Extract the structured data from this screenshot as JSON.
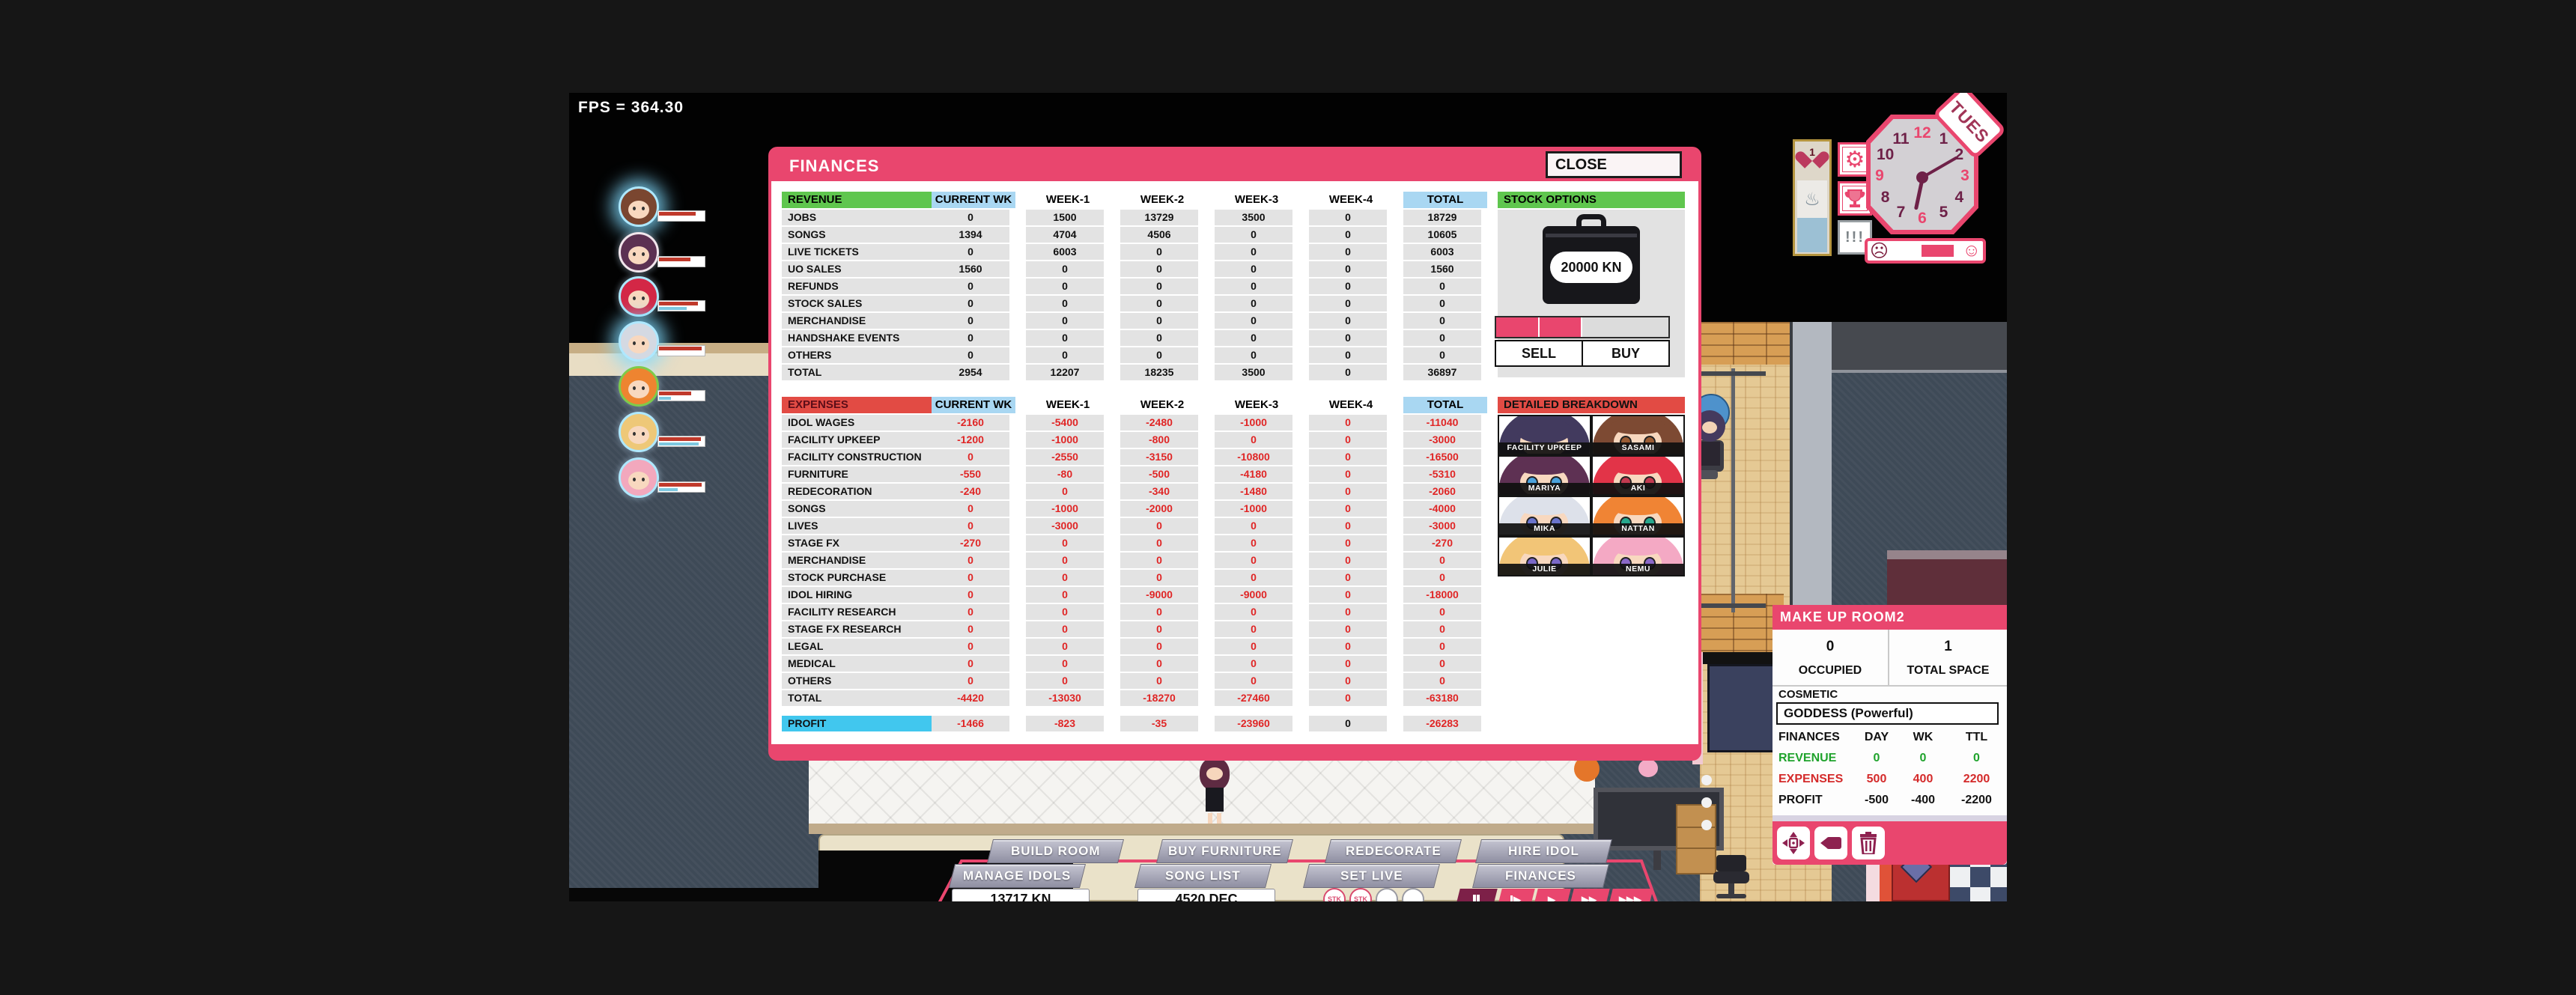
{
  "fps_label": "FPS = 364.30",
  "colors": {
    "accent_pink": "#e9466e",
    "header_green": "#5fc64e",
    "header_blue": "#a9d7f2",
    "header_red": "#e24b44",
    "profit_cyan": "#41c7ee",
    "negative_red": "#e02525"
  },
  "finances": {
    "title": "FINANCES",
    "close_label": "CLOSE",
    "columns": [
      "CURRENT WK",
      "WEEK-1",
      "WEEK-2",
      "WEEK-3",
      "WEEK-4",
      "TOTAL"
    ],
    "revenue_header": "REVENUE",
    "revenue_rows": [
      {
        "label": "JOBS",
        "values": [
          "0",
          "1500",
          "13729",
          "3500",
          "0",
          "18729"
        ]
      },
      {
        "label": "SONGS",
        "values": [
          "1394",
          "4704",
          "4506",
          "0",
          "0",
          "10605"
        ]
      },
      {
        "label": "LIVE TICKETS",
        "values": [
          "0",
          "6003",
          "0",
          "0",
          "0",
          "6003"
        ]
      },
      {
        "label": "UO SALES",
        "values": [
          "1560",
          "0",
          "0",
          "0",
          "0",
          "1560"
        ]
      },
      {
        "label": "REFUNDS",
        "values": [
          "0",
          "0",
          "0",
          "0",
          "0",
          "0"
        ]
      },
      {
        "label": "STOCK SALES",
        "values": [
          "0",
          "0",
          "0",
          "0",
          "0",
          "0"
        ]
      },
      {
        "label": "MERCHANDISE",
        "values": [
          "0",
          "0",
          "0",
          "0",
          "0",
          "0"
        ]
      },
      {
        "label": "HANDSHAKE EVENTS",
        "values": [
          "0",
          "0",
          "0",
          "0",
          "0",
          "0"
        ]
      },
      {
        "label": "OTHERS",
        "values": [
          "0",
          "0",
          "0",
          "0",
          "0",
          "0"
        ]
      },
      {
        "label": "TOTAL",
        "values": [
          "2954",
          "12207",
          "18235",
          "3500",
          "0",
          "36897"
        ]
      }
    ],
    "expenses_header": "EXPENSES",
    "expenses_rows": [
      {
        "label": "IDOL WAGES",
        "values": [
          "-2160",
          "-5400",
          "-2480",
          "-1000",
          "0",
          "-11040"
        ]
      },
      {
        "label": "FACILITY UPKEEP",
        "values": [
          "-1200",
          "-1000",
          "-800",
          "0",
          "0",
          "-3000"
        ]
      },
      {
        "label": "FACILITY CONSTRUCTION",
        "values": [
          "0",
          "-2550",
          "-3150",
          "-10800",
          "0",
          "-16500"
        ]
      },
      {
        "label": "FURNITURE",
        "values": [
          "-550",
          "-80",
          "-500",
          "-4180",
          "0",
          "-5310"
        ]
      },
      {
        "label": "REDECORATION",
        "values": [
          "-240",
          "0",
          "-340",
          "-1480",
          "0",
          "-2060"
        ]
      },
      {
        "label": "SONGS",
        "values": [
          "0",
          "-1000",
          "-2000",
          "-1000",
          "0",
          "-4000"
        ]
      },
      {
        "label": "LIVES",
        "values": [
          "0",
          "-3000",
          "0",
          "0",
          "0",
          "-3000"
        ]
      },
      {
        "label": "STAGE FX",
        "values": [
          "-270",
          "0",
          "0",
          "0",
          "0",
          "-270"
        ]
      },
      {
        "label": "MERCHANDISE",
        "values": [
          "0",
          "0",
          "0",
          "0",
          "0",
          "0"
        ]
      },
      {
        "label": "STOCK PURCHASE",
        "values": [
          "0",
          "0",
          "0",
          "0",
          "0",
          "0"
        ]
      },
      {
        "label": "IDOL HIRING",
        "values": [
          "0",
          "0",
          "-9000",
          "-9000",
          "0",
          "-18000"
        ]
      },
      {
        "label": "FACILITY RESEARCH",
        "values": [
          "0",
          "0",
          "0",
          "0",
          "0",
          "0"
        ]
      },
      {
        "label": "STAGE FX RESEARCH",
        "values": [
          "0",
          "0",
          "0",
          "0",
          "0",
          "0"
        ]
      },
      {
        "label": "LEGAL",
        "values": [
          "0",
          "0",
          "0",
          "0",
          "0",
          "0"
        ]
      },
      {
        "label": "MEDICAL",
        "values": [
          "0",
          "0",
          "0",
          "0",
          "0",
          "0"
        ]
      },
      {
        "label": "OTHERS",
        "values": [
          "0",
          "0",
          "0",
          "0",
          "0",
          "0"
        ]
      },
      {
        "label": "TOTAL",
        "values": [
          "-4420",
          "-13030",
          "-18270",
          "-27460",
          "0",
          "-63180"
        ]
      }
    ],
    "profit_label": "PROFIT",
    "profit_values": [
      "-1466",
      "-823",
      "-35",
      "-23960",
      "0",
      "-26283"
    ],
    "stock": {
      "header": "STOCK OPTIONS",
      "briefcase_amount": "20000 KN",
      "sell_label": "SELL",
      "buy_label": "BUY",
      "segments_filled": 2,
      "segments_total": 4
    },
    "breakdown": {
      "header": "DETAILED BREAKDOWN",
      "portraits": [
        {
          "name": "FACILITY UPKEEP",
          "hair": "#423a5e",
          "eye": "#44405a",
          "covered": true
        },
        {
          "name": "SASAMI",
          "hair": "#7d4a33",
          "eye": "#9a5c34"
        },
        {
          "name": "MARIYA",
          "hair": "#5e3153",
          "eye": "#4aa2dc"
        },
        {
          "name": "AKI",
          "hair": "#e23448",
          "eye": "#c23a50"
        },
        {
          "name": "MIKA",
          "hair": "#dde1ea",
          "eye": "#6a74cc"
        },
        {
          "name": "NATTAN",
          "hair": "#f08434",
          "eye": "#27a88e"
        },
        {
          "name": "JULIE",
          "hair": "#f2c577",
          "eye": "#7a68c8"
        },
        {
          "name": "NEMU",
          "hair": "#f4a9c4",
          "eye": "#8a68c8"
        }
      ]
    }
  },
  "clock": {
    "day": "TUES",
    "pink_numbers": [
      12,
      3,
      6,
      9
    ],
    "hour_angle": 192,
    "minute_angle": 60
  },
  "side_buttons": {
    "alert_label": "!!!"
  },
  "heart_card": {
    "count": "1"
  },
  "mood": {
    "fill_start": 0.44,
    "fill_end": 0.92
  },
  "makeup": {
    "title": "MAKE UP ROOM2",
    "occupied_value": "0",
    "occupied_label": "OCCUPIED",
    "space_value": "1",
    "space_label": "TOTAL SPACE",
    "cosmetic_label": "COSMETIC",
    "cosmetic_value": "GODDESS (Powerful)",
    "table": {
      "header": [
        "FINANCES",
        "DAY",
        "WK",
        "TTL"
      ],
      "rows": [
        {
          "label": "REVENUE",
          "values": [
            "0",
            "0",
            "0"
          ],
          "color": "#1fa32c"
        },
        {
          "label": "EXPENSES",
          "values": [
            "500",
            "400",
            "2200"
          ],
          "color": "#d42a2a"
        },
        {
          "label": "PROFIT",
          "values": [
            "-500",
            "-400",
            "-2200"
          ],
          "color": "#141414"
        }
      ]
    }
  },
  "bottom": {
    "row1": [
      "BUILD ROOM",
      "BUY FURNITURE",
      "REDECORATE",
      "HIRE IDOL"
    ],
    "row2": [
      "MANAGE IDOLS",
      "SONG LIST",
      "SET LIVE",
      "FINANCES"
    ],
    "money": "13717 KN",
    "date": "4520 DEC",
    "stk_badges": [
      "STK",
      "STK"
    ],
    "empty_slots": 2,
    "playback": [
      "pause",
      "step",
      "play",
      "fast",
      "fastest"
    ]
  },
  "idols": [
    {
      "hair": "#7a4630",
      "ring": "#aee8ff",
      "glow": true,
      "red": 0.82,
      "blue": 0
    },
    {
      "hair": "#5c3152",
      "ring": "#f2e6ec",
      "glow": false,
      "red": 0.7,
      "blue": 0
    },
    {
      "hair": "#d32746",
      "ring": "#aee8ff",
      "glow": false,
      "red": 0.86,
      "blue": 0.62
    },
    {
      "hair": "#d4d9e2",
      "ring": "#aee8ff",
      "glow": true,
      "red": 0.95,
      "blue": 0
    },
    {
      "hair": "#ee8430",
      "ring": "#7ecb4a",
      "glow": false,
      "red": 0.72,
      "blue": 0.26
    },
    {
      "hair": "#eec878",
      "ring": "#aee8ff",
      "glow": false,
      "red": 0.93,
      "blue": 0.88
    },
    {
      "hair": "#f2a8bd",
      "ring": "#aee8ff",
      "glow": false,
      "red": 0.95,
      "blue": 0.42
    }
  ]
}
